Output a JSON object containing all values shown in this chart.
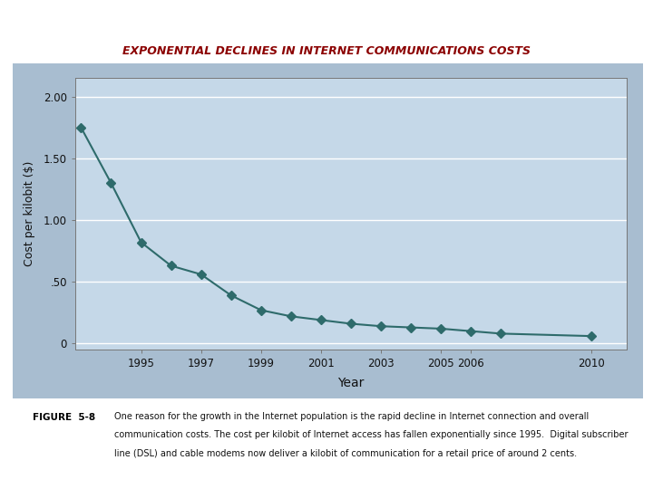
{
  "title": "EXPONENTIAL DECLINES IN INTERNET COMMUNICATIONS COSTS",
  "title_color": "#8B0000",
  "xlabel": "Year",
  "ylabel": "Cost per kilobit ($)",
  "years": [
    1993,
    1994,
    1995,
    1996,
    1997,
    1998,
    1999,
    2000,
    2001,
    2002,
    2003,
    2004,
    2005,
    2006,
    2007,
    2010
  ],
  "costs": [
    1.75,
    1.3,
    0.82,
    0.63,
    0.56,
    0.39,
    0.27,
    0.22,
    0.19,
    0.16,
    0.14,
    0.13,
    0.12,
    0.1,
    0.08,
    0.06
  ],
  "line_color": "#2E6B6B",
  "marker_color": "#2E6B6B",
  "plot_bg_color": "#C5D8E8",
  "outer_bg_color": "#A8BDD0",
  "fig_bg_color": "#FFFFFF",
  "yticks": [
    0,
    0.5,
    1.0,
    1.5,
    2.0
  ],
  "ytick_labels": [
    "0",
    ".50",
    "1.00",
    "1.50",
    "2.00"
  ],
  "xtick_positions": [
    1995,
    1997,
    1999,
    2001,
    2003,
    2005,
    2006,
    2010
  ],
  "xtick_labels": [
    "1995",
    "1997",
    "1999",
    "2001",
    "2003",
    "2005",
    "2006",
    "2010"
  ],
  "xlim": [
    1992.8,
    2011.2
  ],
  "ylim": [
    -0.05,
    2.15
  ],
  "caption_label": "FIGURE  5-8",
  "caption_line1": "One reason for the growth in the Internet population is the rapid decline in Internet connection and overall",
  "caption_line2": "communication costs. The cost per kilobit of Internet access has fallen exponentially since 1995.  Digital subscriber",
  "caption_line3": "line (DSL) and cable modems now deliver a kilobit of communication for a retail price of around 2 cents."
}
